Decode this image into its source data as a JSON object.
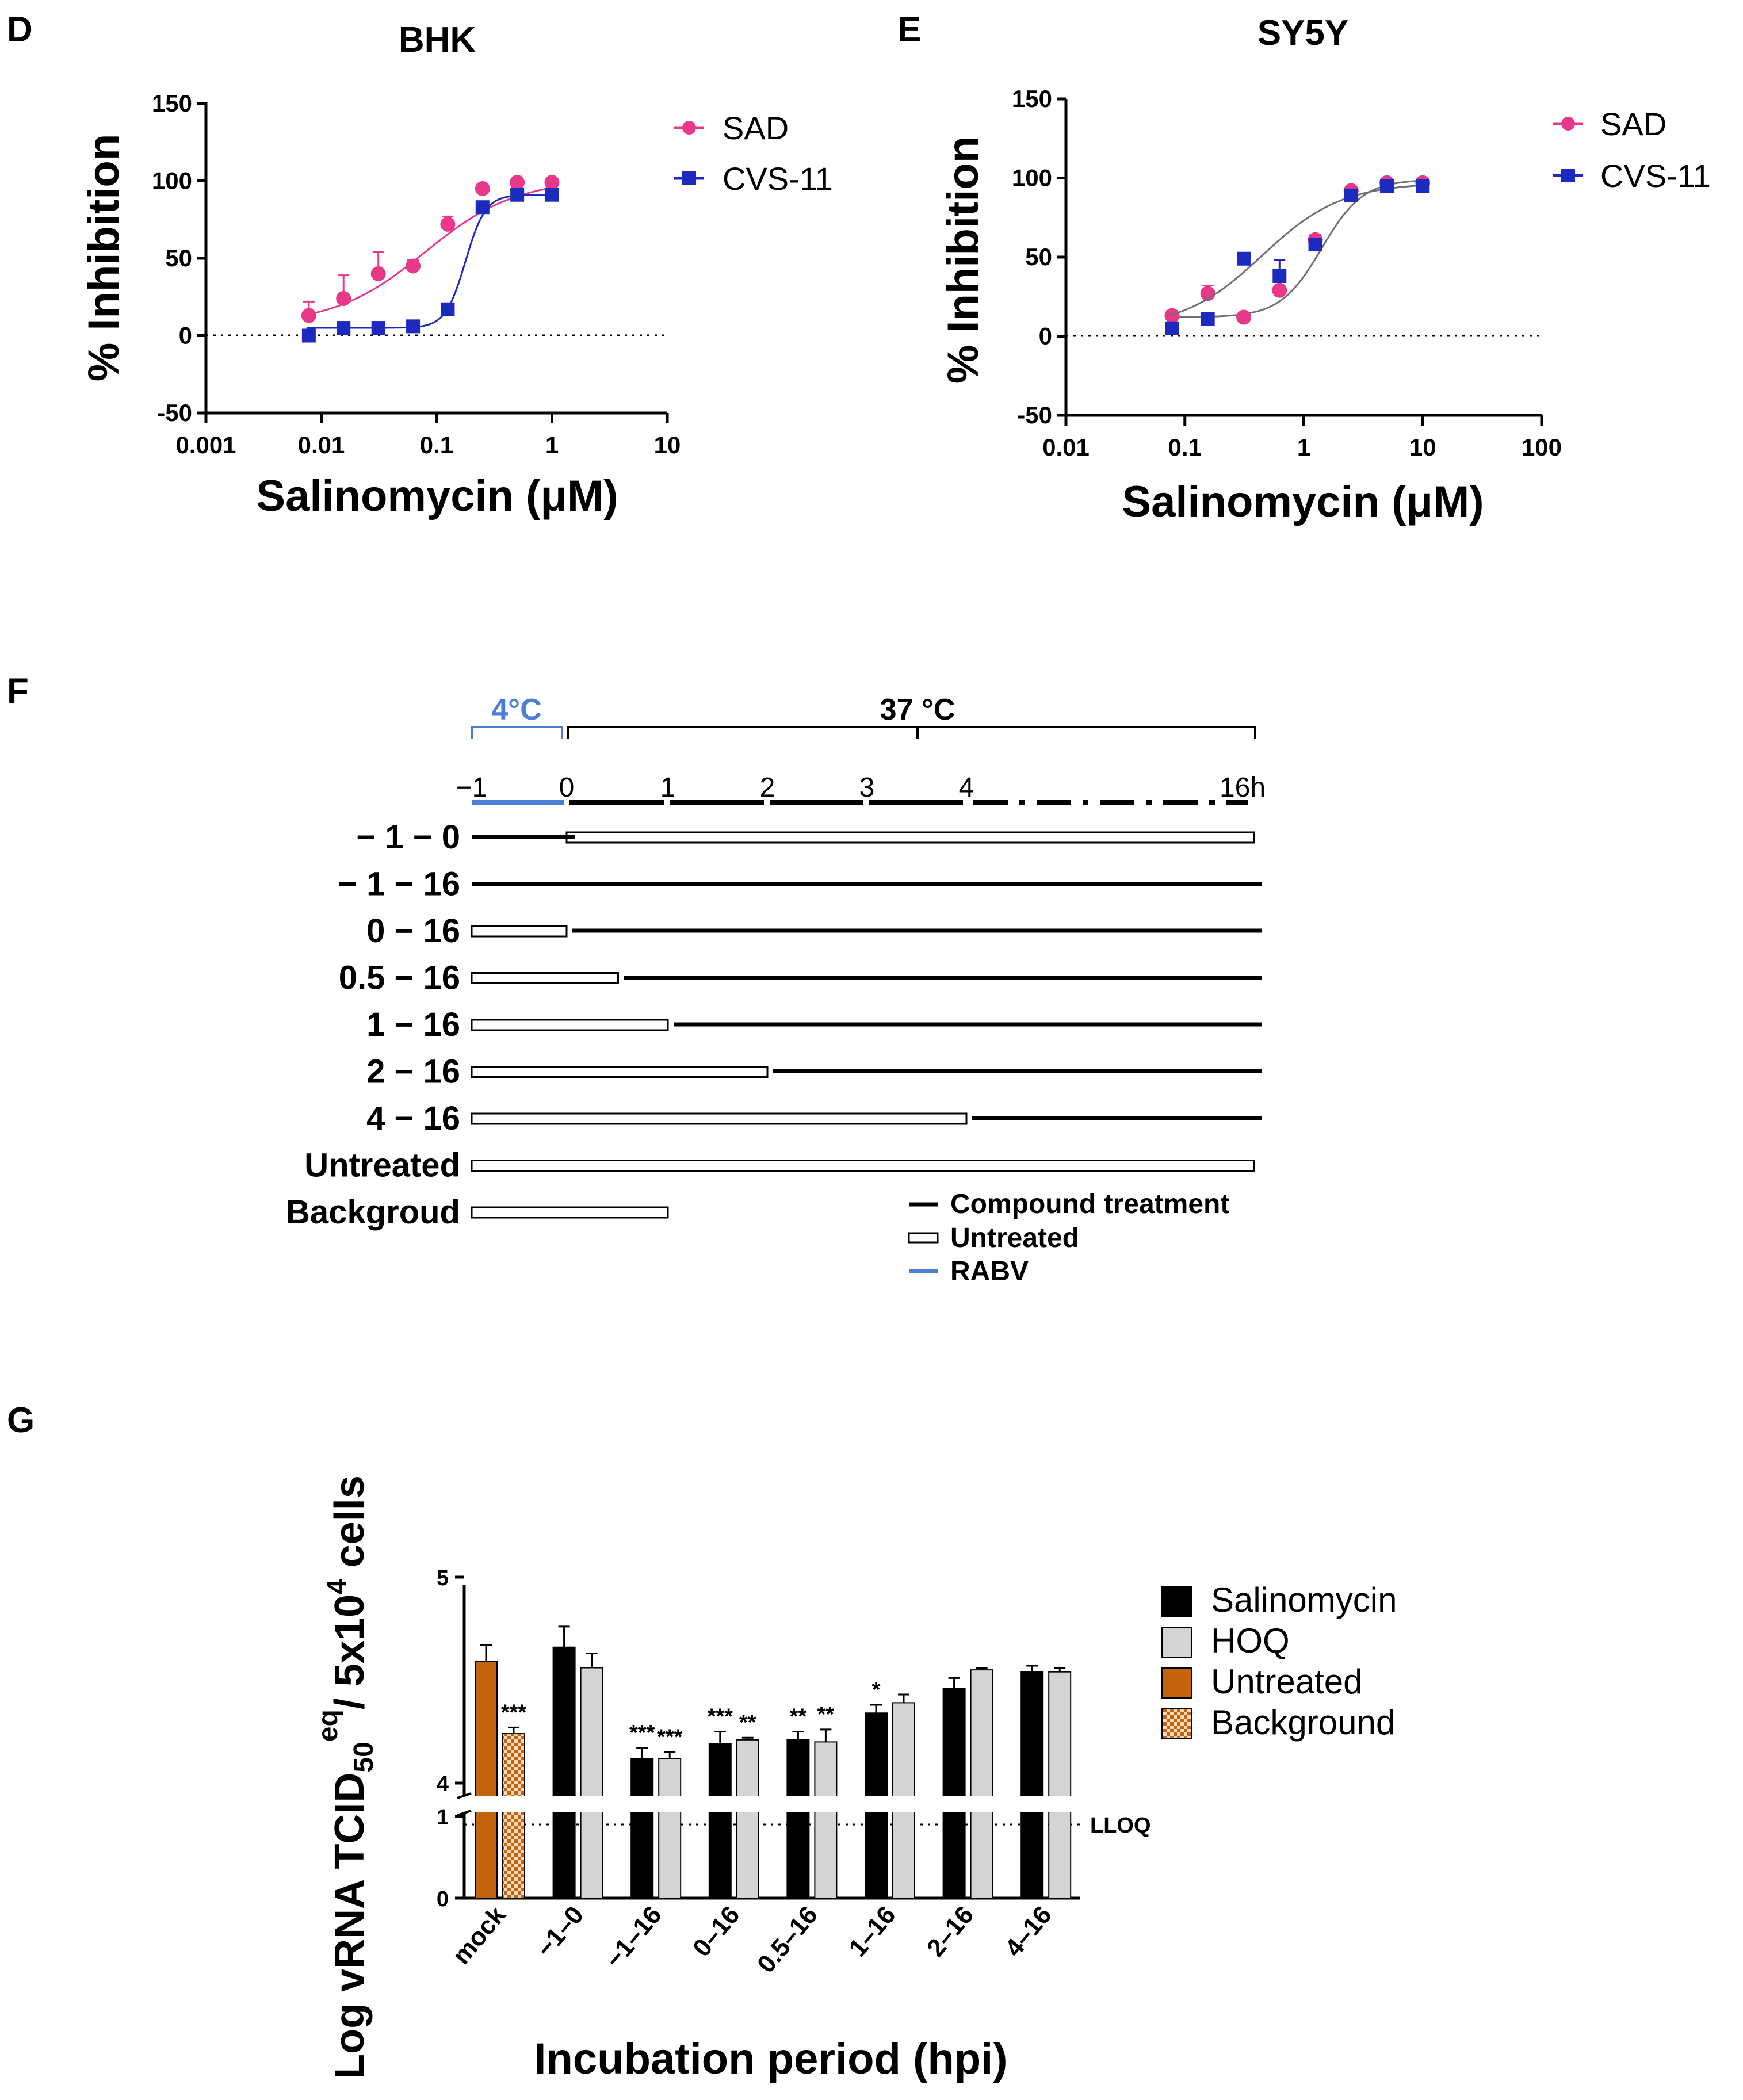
{
  "charts": [
    {
      "panel_letter": "D",
      "type": "scatter",
      "title": "BHK",
      "xlabel": "Salinomycin (μM)",
      "ylabel": "% Inhibition",
      "x_scale": "log",
      "xlim": [
        0.001,
        10
      ],
      "ylim": [
        -50,
        150
      ],
      "xticks": [
        "0.001",
        "0.01",
        "0.1",
        "1",
        "10"
      ],
      "yticks": [
        "-50",
        "0",
        "50",
        "100",
        "150"
      ],
      "zero_reference_line": "dotted",
      "legend_position": "top-right",
      "series": [
        {
          "name": "SAD",
          "color": "#e8388a",
          "marker": "circle",
          "x": [
            0.0078,
            0.0156,
            0.03125,
            0.0625,
            0.125,
            0.25,
            0.5,
            1
          ],
          "y": [
            13,
            24,
            40,
            45,
            72,
            95,
            99,
            99
          ],
          "err": [
            9,
            15,
            14,
            4,
            5,
            3,
            2,
            2
          ],
          "fit": {
            "bottom": 7,
            "top": 101,
            "logec50": -1.1,
            "hill": 1.1
          }
        },
        {
          "name": "CVS-11",
          "color": "#1c2ac0",
          "marker": "square",
          "x": [
            0.0078,
            0.0156,
            0.03125,
            0.0625,
            0.125,
            0.25,
            0.5,
            1
          ],
          "y": [
            0,
            5,
            5,
            6,
            17,
            83,
            91,
            91
          ],
          "err": [
            2,
            2,
            2,
            2,
            2,
            3,
            3,
            2
          ],
          "fit": {
            "bottom": 5,
            "top": 91,
            "logec50": -0.75,
            "hill": 5
          }
        }
      ]
    },
    {
      "panel_letter": "E",
      "type": "scatter",
      "title": "SY5Y",
      "xlabel": "Salinomycin (μM)",
      "ylabel": "% Inhibition",
      "x_scale": "log",
      "xlim": [
        0.01,
        100
      ],
      "ylim": [
        -50,
        150
      ],
      "xticks": [
        "0.01",
        "0.1",
        "1",
        "10",
        "100"
      ],
      "yticks": [
        "-50",
        "0",
        "50",
        "100",
        "150"
      ],
      "zero_reference_line": "dotted",
      "legend_position": "top-right",
      "series": [
        {
          "name": "SAD",
          "color": "#e8388a",
          "marker": "circle",
          "x": [
            0.078,
            0.156,
            0.3125,
            0.625,
            1.25,
            2.5,
            5,
            10
          ],
          "y": [
            13,
            27,
            12,
            29,
            61,
            92,
            97,
            97
          ],
          "err": [
            3,
            5,
            2,
            3,
            3,
            2,
            2,
            2
          ],
          "fit": {
            "bottom": 12,
            "top": 99,
            "logec50": 0.15,
            "hill": 2.5
          }
        },
        {
          "name": "CVS-11",
          "color": "#1c2ac0",
          "marker": "square",
          "x": [
            0.078,
            0.156,
            0.3125,
            0.625,
            1.25,
            2.5,
            5,
            10
          ],
          "y": [
            5,
            11,
            49,
            38,
            58,
            89,
            95,
            95
          ],
          "err": [
            2,
            3,
            3,
            10,
            3,
            2,
            2,
            2
          ],
          "fit": {
            "bottom": 5,
            "top": 97,
            "logec50": -0.35,
            "hill": 1.3
          }
        }
      ]
    },
    {
      "panel_letter": "G",
      "type": "bar",
      "xlabel": "Incubation period (hpi)",
      "ylabel_parts": {
        "a": "Log vRNA TCID",
        "sub": "50",
        "sup": "eq",
        "b": "/ 5x10",
        "sup2": "4",
        "c": " cells"
      },
      "y_axis": "broken",
      "ylim_lower": [
        0,
        1
      ],
      "ylim_upper": [
        4,
        5
      ],
      "yticks_lower": [
        "0",
        "1"
      ],
      "yticks_upper": [
        "4",
        "5"
      ],
      "reference_line": {
        "value": 1,
        "label": "LLOQ",
        "style": "dotted"
      },
      "legend_position": "right",
      "categories": [
        "mock",
        "−1–0",
        "−1–16",
        "0–16",
        "0.5–16",
        "1–16",
        "2–16",
        "4–16"
      ],
      "mock": {
        "untreated": {
          "value": 4.59,
          "err": 0.08,
          "sig": ""
        },
        "background": {
          "value": 4.24,
          "err": 0.03,
          "sig": "***"
        }
      },
      "series": [
        {
          "name": "Salinomycin",
          "color": "#000000",
          "values": [
            null,
            4.66,
            4.12,
            4.19,
            4.21,
            4.34,
            4.46,
            4.54
          ],
          "err": [
            null,
            0.1,
            0.05,
            0.06,
            0.04,
            0.04,
            0.05,
            0.03
          ],
          "sig": [
            "",
            "",
            "***",
            "***",
            "**",
            "*",
            "",
            ""
          ]
        },
        {
          "name": "HOQ",
          "color": "#d4d4d4",
          "values": [
            null,
            4.56,
            4.12,
            4.21,
            4.2,
            4.39,
            4.55,
            4.54
          ],
          "err": [
            null,
            0.07,
            0.03,
            0.01,
            0.06,
            0.04,
            0.01,
            0.02
          ],
          "sig": [
            "",
            "",
            "***",
            "**",
            "**",
            "",
            "",
            ""
          ]
        }
      ],
      "legend": [
        {
          "label": "Salinomycin",
          "color": "#000000",
          "pattern": "solid"
        },
        {
          "label": "HOQ",
          "color": "#d4d4d4",
          "pattern": "solid"
        },
        {
          "label": "Untreated",
          "color": "#c5640f",
          "pattern": "solid"
        },
        {
          "label": "Background",
          "color": "#c5640f",
          "pattern": "checker"
        }
      ]
    }
  ],
  "schedule": {
    "panel_letter": "F",
    "temp_cold": "4°C",
    "temp_warm": "37 °C",
    "cold_color": "#4a7fd4",
    "time_labels": [
      {
        "t": -1,
        "text": "−1"
      },
      {
        "t": 0,
        "text": "0"
      },
      {
        "t": 1,
        "text": "1"
      },
      {
        "t": 2,
        "text": "2"
      },
      {
        "t": 3,
        "text": "3"
      },
      {
        "t": 4,
        "text": "4"
      },
      {
        "t": 16,
        "text": "16h"
      }
    ],
    "rows": [
      {
        "label": "− 1 − 0",
        "treat": [
          [
            -1,
            0
          ]
        ],
        "untreated": [
          [
            0,
            16
          ]
        ]
      },
      {
        "label": "− 1 − 16",
        "treat": [
          [
            -1,
            16
          ]
        ],
        "untreated": []
      },
      {
        "label": "0 − 16",
        "treat": [
          [
            0,
            16
          ]
        ],
        "untreated": [
          [
            -1,
            0
          ]
        ]
      },
      {
        "label": "0.5 − 16",
        "treat": [
          [
            0.5,
            16
          ]
        ],
        "untreated": [
          [
            -1,
            0.5
          ]
        ]
      },
      {
        "label": "1 − 16",
        "treat": [
          [
            1,
            16
          ]
        ],
        "untreated": [
          [
            -1,
            1
          ]
        ]
      },
      {
        "label": "2 − 16",
        "treat": [
          [
            2,
            16
          ]
        ],
        "untreated": [
          [
            -1,
            2
          ]
        ]
      },
      {
        "label": "4 − 16",
        "treat": [
          [
            4,
            16
          ]
        ],
        "untreated": [
          [
            -1,
            4
          ]
        ]
      },
      {
        "label": "Untreated",
        "treat": [],
        "untreated": [
          [
            -1,
            16
          ]
        ]
      },
      {
        "label": "Backgroud",
        "treat": [],
        "untreated": [
          [
            -1,
            1
          ]
        ]
      }
    ],
    "legend": [
      {
        "kind": "treat",
        "label": "Compound treatment"
      },
      {
        "kind": "untreated",
        "label": "Untreated"
      },
      {
        "kind": "rabv",
        "label": "RABV"
      }
    ]
  }
}
